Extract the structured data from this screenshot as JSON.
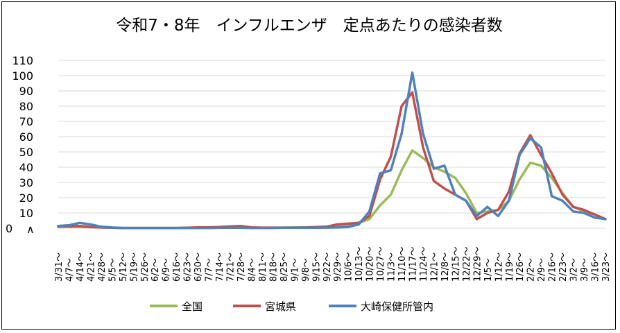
{
  "chart_data": {
    "type": "line",
    "title": "令和7・8年　インフルエンザ　定点あたりの感染者数",
    "xlabel": "",
    "ylabel": "",
    "ylim": [
      0,
      110
    ],
    "yticks": [
      "0",
      "10",
      "20",
      "30",
      "40",
      "50",
      "60",
      "70",
      "80",
      "90",
      "100",
      "110"
    ],
    "axis_break_mark": "∧",
    "grid": true,
    "legend_position": "bottom",
    "categories": [
      "3/31～",
      "4/7～",
      "4/14～",
      "4/21～",
      "4/28～",
      "5/5～",
      "5/12～",
      "5/19～",
      "5/26～",
      "6/2～",
      "6/9～",
      "6/16～",
      "6/23～",
      "6/30～",
      "7/7～",
      "7/14～",
      "7/21～",
      "7/28～",
      "8/4～",
      "8/11～",
      "8/18～",
      "8/25～",
      "9/1～",
      "9/8～",
      "9/15～",
      "9/22～",
      "9/29～",
      "10/6～",
      "10/13～",
      "10/20～",
      "10/27～",
      "11/3～",
      "11/10～",
      "11/17～",
      "11/24～",
      "12/1～",
      "12/8～",
      "12/15～",
      "12/22～",
      "12/29～",
      "1/5～",
      "1/12～",
      "1/19～",
      "1/26～",
      "2/2～",
      "2/9～",
      "2/16～",
      "2/23～",
      "3/2～",
      "3/9～",
      "3/16～",
      "3/23～"
    ],
    "series": [
      {
        "name": "全国",
        "color": "#9BBB59",
        "values": [
          1.2,
          1.0,
          0.9,
          0.7,
          0.5,
          0.3,
          0.2,
          0.2,
          0.2,
          0.2,
          0.2,
          0.2,
          0.3,
          0.3,
          0.4,
          0.4,
          0.4,
          0.4,
          0.3,
          0.3,
          0.3,
          0.4,
          0.5,
          0.6,
          0.8,
          1.0,
          1.6,
          2.4,
          3.5,
          6,
          15,
          22,
          38,
          51,
          46,
          40,
          37,
          33,
          23,
          10,
          11,
          12,
          18,
          32,
          43,
          41,
          33,
          23,
          14,
          11,
          9,
          6
        ]
      },
      {
        "name": "宮城県",
        "color": "#C0504D",
        "values": [
          1.0,
          1.2,
          1.5,
          0.8,
          0.5,
          0.3,
          0.2,
          0.2,
          0.2,
          0.2,
          0.2,
          0.2,
          0.3,
          0.6,
          0.6,
          0.8,
          1.2,
          1.5,
          0.6,
          0.4,
          0.4,
          0.4,
          0.4,
          0.5,
          0.7,
          1.0,
          2.5,
          3.0,
          3.5,
          8,
          32,
          47,
          80,
          89,
          53,
          31,
          26,
          22,
          18,
          6,
          10,
          12,
          24,
          49,
          61,
          48,
          36,
          22,
          14,
          12,
          9,
          6
        ]
      },
      {
        "name": "大崎保健所管内",
        "color": "#4F81BD",
        "values": [
          1.5,
          2.0,
          3.5,
          2.5,
          1.0,
          0.5,
          0.2,
          0.2,
          0.2,
          0.2,
          0.2,
          0.2,
          0.2,
          0.2,
          0.2,
          0.3,
          0.3,
          0.3,
          0.2,
          0.2,
          0.2,
          0.3,
          0.3,
          0.3,
          0.3,
          0.4,
          0.5,
          0.8,
          2.5,
          11,
          36,
          38,
          62,
          102,
          62,
          39,
          41,
          22,
          18,
          8,
          14,
          8,
          18,
          48,
          59,
          53,
          21,
          18,
          11,
          10,
          7,
          6
        ]
      }
    ]
  }
}
